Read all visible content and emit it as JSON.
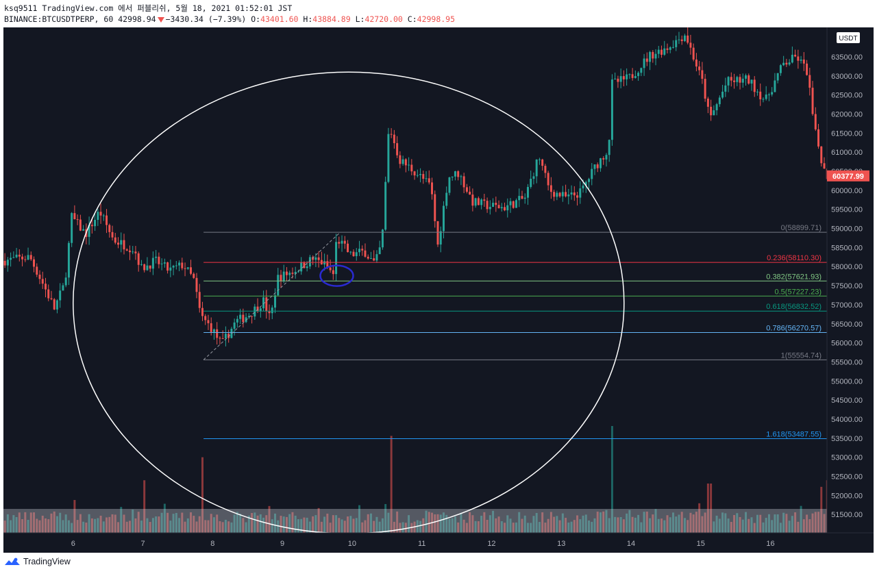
{
  "header": {
    "line1": "ksq9511 TradingView.com 에서 퍼블리쉬, 5월 18, 2021 01:52:01 JST",
    "symbol": "BINANCE:BTCUSDTPERP, 60",
    "last": "42998.94",
    "change": "−3430.34 (−7.39%)",
    "o_label": "O:",
    "o_val": "43401.60",
    "h_label": "H:",
    "h_val": "43884.89",
    "l_label": "L:",
    "l_val": "42720.00",
    "c_label": "C:",
    "c_val": "42998.95"
  },
  "footer": {
    "brand": "TradingView"
  },
  "colors": {
    "bg": "#131722",
    "up": "#26a69a",
    "down": "#ef5350",
    "text": "#b2b5be"
  },
  "chart_data": {
    "type": "candlestick",
    "currency_label": "USDT",
    "ylim": [
      51000,
      64200
    ],
    "y_ticks": [
      51500,
      52000,
      52500,
      53000,
      53500,
      54000,
      54500,
      55000,
      55500,
      56000,
      56500,
      57000,
      57500,
      58000,
      58500,
      59000,
      59500,
      60000,
      60500,
      61000,
      61500,
      62000,
      62500,
      63000,
      63500
    ],
    "y_tick_labels": [
      "51500.00",
      "52000.00",
      "52500.00",
      "53000.00",
      "53500.00",
      "54000.00",
      "54500.00",
      "55000.00",
      "55500.00",
      "56000.00",
      "56500.00",
      "57000.00",
      "57500.00",
      "58000.00",
      "58500.00",
      "59000.00",
      "59500.00",
      "60000.00",
      "60500.00",
      "61000.00",
      "61500.00",
      "62000.00",
      "62500.00",
      "63000.00",
      "63500.00"
    ],
    "x_day_labels": [
      "6",
      "7",
      "8",
      "9",
      "10",
      "11",
      "12",
      "13",
      "14",
      "15",
      "16"
    ],
    "x_range_days": [
      5.0,
      16.81
    ],
    "current_price": 60377.99,
    "current_price_label": "60377.99",
    "fib_levels": [
      {
        "level": "0",
        "price": 58899.71,
        "label": "0(58899.71)",
        "color": "#787b86"
      },
      {
        "level": "0.236",
        "price": 58110.3,
        "label": "0.236(58110.30)",
        "color": "#f23645"
      },
      {
        "level": "0.382",
        "price": 57621.93,
        "label": "0.382(57621.93)",
        "color": "#81c784"
      },
      {
        "level": "0.5",
        "price": 57227.23,
        "label": "0.5(57227.23)",
        "color": "#4caf50"
      },
      {
        "level": "0.618",
        "price": 56832.52,
        "label": "0.618(56832.52)",
        "color": "#089981"
      },
      {
        "level": "0.786",
        "price": 56270.57,
        "label": "0.786(56270.57)",
        "color": "#64b5f6"
      },
      {
        "level": "1",
        "price": 55554.74,
        "label": "1(55554.74)",
        "color": "#787b86"
      },
      {
        "level": "1.618",
        "price": 53487.55,
        "label": "1.618(53487.55)",
        "color": "#2196f3"
      }
    ],
    "fib_start_day": 7.87,
    "fib_trend": {
      "from": [
        7.87,
        55554.74
      ],
      "to": [
        9.83,
        58899.71
      ]
    },
    "ellipse": {
      "center": [
        9.95,
        57050
      ],
      "radius_days": 3.95,
      "radius_price": 6050
    },
    "marker_circle": {
      "day": 9.78,
      "price": 57760
    },
    "price_path": [
      [
        5.0,
        58150
      ],
      [
        5.4,
        58250
      ],
      [
        5.6,
        57500
      ],
      [
        5.75,
        56900
      ],
      [
        5.9,
        57550
      ],
      [
        6.0,
        59300
      ],
      [
        6.2,
        58850
      ],
      [
        6.4,
        59450
      ],
      [
        6.6,
        58700
      ],
      [
        6.9,
        58450
      ],
      [
        7.0,
        57950
      ],
      [
        7.2,
        58150
      ],
      [
        7.4,
        57900
      ],
      [
        7.6,
        58050
      ],
      [
        7.75,
        57650
      ],
      [
        7.85,
        56700
      ],
      [
        8.0,
        56400
      ],
      [
        8.15,
        55950
      ],
      [
        8.35,
        56550
      ],
      [
        8.55,
        56750
      ],
      [
        8.75,
        57100
      ],
      [
        8.85,
        56600
      ],
      [
        8.95,
        57700
      ],
      [
        9.2,
        57900
      ],
      [
        9.45,
        58200
      ],
      [
        9.6,
        58100
      ],
      [
        9.75,
        57800
      ],
      [
        9.8,
        58750
      ],
      [
        10.0,
        58300
      ],
      [
        10.2,
        58400
      ],
      [
        10.35,
        58050
      ],
      [
        10.45,
        58650
      ],
      [
        10.55,
        61700
      ],
      [
        10.7,
        60800
      ],
      [
        10.95,
        60450
      ],
      [
        11.15,
        60100
      ],
      [
        11.25,
        58550
      ],
      [
        11.4,
        60350
      ],
      [
        11.55,
        60450
      ],
      [
        11.75,
        59700
      ],
      [
        11.95,
        59600
      ],
      [
        12.2,
        59550
      ],
      [
        12.5,
        59800
      ],
      [
        12.7,
        60900
      ],
      [
        12.85,
        60000
      ],
      [
        13.1,
        59800
      ],
      [
        13.3,
        59950
      ],
      [
        13.5,
        60600
      ],
      [
        13.7,
        61100
      ],
      [
        13.75,
        62800
      ],
      [
        14.0,
        62950
      ],
      [
        14.3,
        63550
      ],
      [
        14.55,
        63750
      ],
      [
        14.8,
        64100
      ],
      [
        15.05,
        62800
      ],
      [
        15.15,
        61850
      ],
      [
        15.4,
        62850
      ],
      [
        15.7,
        62900
      ],
      [
        15.95,
        62350
      ],
      [
        16.2,
        63300
      ],
      [
        16.4,
        63500
      ],
      [
        16.55,
        63100
      ],
      [
        16.65,
        61600
      ],
      [
        16.81,
        60378
      ]
    ],
    "volume_spikes": [
      [
        7.85,
        0.46
      ],
      [
        10.55,
        0.54
      ],
      [
        13.7,
        0.65
      ],
      [
        6.0,
        0.2
      ],
      [
        7.0,
        0.32
      ],
      [
        14.95,
        0.18
      ],
      [
        15.1,
        0.3
      ],
      [
        16.7,
        0.28
      ],
      [
        16.8,
        0.32
      ]
    ]
  }
}
